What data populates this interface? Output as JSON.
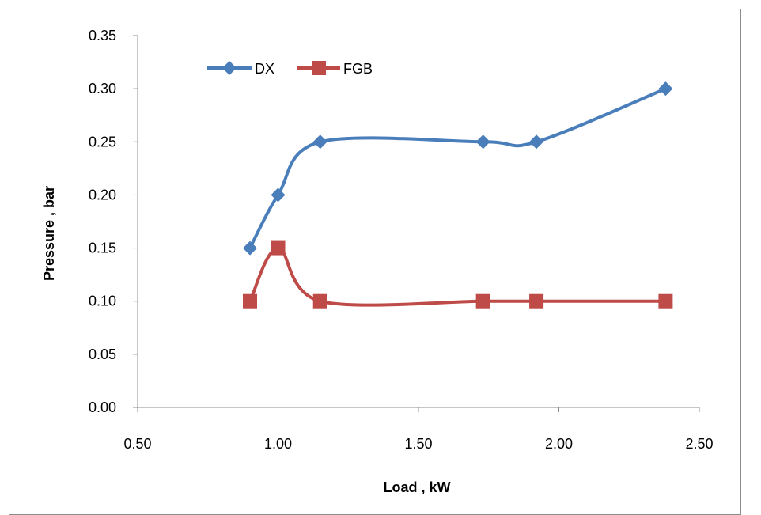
{
  "chart_data": {
    "type": "line",
    "title": "",
    "xlabel": "Load , kW",
    "ylabel": "Pressure , bar",
    "xlim": [
      0.5,
      2.5
    ],
    "ylim": [
      0.0,
      0.35
    ],
    "xticks": [
      "0.50",
      "1.00",
      "1.50",
      "2.00",
      "2.50"
    ],
    "yticks": [
      "0.00",
      "0.05",
      "0.10",
      "0.15",
      "0.20",
      "0.25",
      "0.30",
      "0.35"
    ],
    "grid": false,
    "smooth": true,
    "legend_position": "top-left",
    "series": [
      {
        "name": "DX",
        "color": "#4a7ebb",
        "marker": "diamond",
        "x": [
          0.9,
          1.0,
          1.15,
          1.73,
          1.92,
          2.38
        ],
        "y": [
          0.15,
          0.2,
          0.25,
          0.25,
          0.25,
          0.3
        ]
      },
      {
        "name": "FGB",
        "color": "#be4b48",
        "marker": "square",
        "x": [
          0.9,
          1.0,
          1.15,
          1.73,
          1.92,
          2.38
        ],
        "y": [
          0.1,
          0.15,
          0.1,
          0.1,
          0.1,
          0.1
        ]
      }
    ]
  }
}
